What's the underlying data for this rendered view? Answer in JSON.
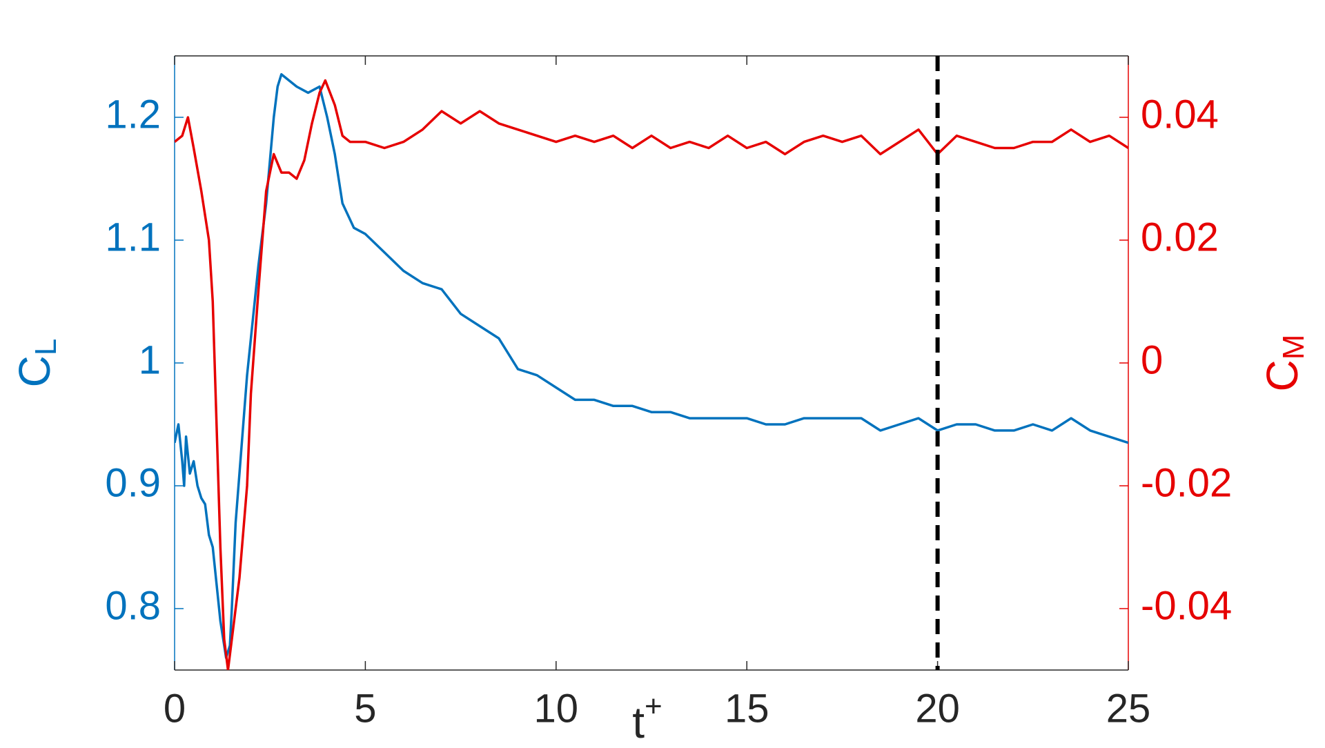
{
  "chart_data": {
    "type": "line",
    "xlabel": {
      "base": "t",
      "sup": "+"
    },
    "ylabel": {
      "base": "C",
      "sub": "L"
    },
    "y2label": {
      "base": "C",
      "sub": "M"
    },
    "xlim": [
      0,
      25
    ],
    "xticks": [
      0,
      5,
      10,
      15,
      20,
      25
    ],
    "ylim": [
      0.75,
      1.25
    ],
    "yticks": [
      0.8,
      0.9,
      1,
      1.1,
      1.2
    ],
    "y2lim": [
      -0.05,
      0.05
    ],
    "y2ticks": [
      -0.04,
      -0.02,
      0,
      0.02,
      0.04
    ],
    "grid": false,
    "vline": 20,
    "series": [
      {
        "color": "#0072bd",
        "axis": "y",
        "x": [
          0,
          0.1,
          0.2,
          0.25,
          0.3,
          0.4,
          0.5,
          0.6,
          0.7,
          0.8,
          0.9,
          1.0,
          1.1,
          1.2,
          1.3,
          1.35,
          1.45,
          1.5,
          1.6,
          1.7,
          1.8,
          1.9,
          2.0,
          2.2,
          2.4,
          2.6,
          2.7,
          2.8,
          3.0,
          3.2,
          3.5,
          3.8,
          4.0,
          4.2,
          4.4,
          4.7,
          5.0,
          5.5,
          6.0,
          6.5,
          7.0,
          7.5,
          8.0,
          8.5,
          9.0,
          9.5,
          10,
          10.5,
          11,
          11.5,
          12,
          12.5,
          13,
          13.5,
          14,
          14.5,
          15,
          15.5,
          16,
          16.5,
          17,
          17.5,
          18,
          18.5,
          19,
          19.5,
          20,
          20.5,
          21,
          21.5,
          22,
          22.5,
          23,
          23.5,
          24,
          24.5,
          25
        ],
        "values": [
          0.935,
          0.95,
          0.92,
          0.9,
          0.94,
          0.91,
          0.92,
          0.9,
          0.89,
          0.885,
          0.86,
          0.85,
          0.82,
          0.79,
          0.77,
          0.76,
          0.77,
          0.8,
          0.87,
          0.91,
          0.95,
          0.99,
          1.02,
          1.08,
          1.13,
          1.2,
          1.225,
          1.235,
          1.23,
          1.225,
          1.22,
          1.225,
          1.2,
          1.17,
          1.13,
          1.11,
          1.105,
          1.09,
          1.075,
          1.065,
          1.06,
          1.04,
          1.03,
          1.02,
          0.995,
          0.99,
          0.98,
          0.97,
          0.97,
          0.965,
          0.965,
          0.96,
          0.96,
          0.955,
          0.955,
          0.955,
          0.955,
          0.95,
          0.95,
          0.955,
          0.955,
          0.955,
          0.955,
          0.945,
          0.95,
          0.955,
          0.945,
          0.95,
          0.95,
          0.945,
          0.945,
          0.95,
          0.945,
          0.955,
          0.945,
          0.94,
          0.935
        ]
      },
      {
        "color": "#e60000",
        "axis": "y2",
        "x": [
          0,
          0.2,
          0.35,
          0.5,
          0.7,
          0.9,
          1.0,
          1.1,
          1.2,
          1.3,
          1.4,
          1.5,
          1.7,
          1.9,
          2.0,
          2.2,
          2.4,
          2.6,
          2.8,
          3.0,
          3.2,
          3.4,
          3.6,
          3.8,
          3.95,
          4.2,
          4.4,
          4.6,
          5,
          5.5,
          6,
          6.5,
          7,
          7.5,
          8,
          8.5,
          9,
          9.5,
          10,
          10.5,
          11,
          11.5,
          12,
          12.5,
          13,
          13.5,
          14,
          14.5,
          15,
          15.5,
          16,
          16.5,
          17,
          17.5,
          18,
          18.5,
          19,
          19.5,
          20,
          20.5,
          21,
          21.5,
          22,
          22.5,
          23,
          23.5,
          24,
          24.5,
          25
        ],
        "values": [
          0.036,
          0.037,
          0.04,
          0.035,
          0.028,
          0.02,
          0.01,
          -0.01,
          -0.03,
          -0.045,
          -0.05,
          -0.045,
          -0.035,
          -0.02,
          -0.005,
          0.012,
          0.028,
          0.034,
          0.031,
          0.031,
          0.03,
          0.033,
          0.039,
          0.044,
          0.046,
          0.042,
          0.037,
          0.036,
          0.036,
          0.035,
          0.036,
          0.038,
          0.041,
          0.039,
          0.041,
          0.039,
          0.038,
          0.037,
          0.036,
          0.037,
          0.036,
          0.037,
          0.035,
          0.037,
          0.035,
          0.036,
          0.035,
          0.037,
          0.035,
          0.036,
          0.034,
          0.036,
          0.037,
          0.036,
          0.037,
          0.034,
          0.036,
          0.038,
          0.034,
          0.037,
          0.036,
          0.035,
          0.035,
          0.036,
          0.036,
          0.038,
          0.036,
          0.037,
          0.035
        ]
      }
    ]
  }
}
